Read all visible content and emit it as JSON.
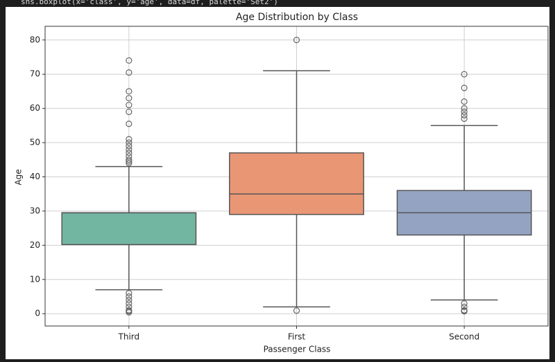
{
  "code": "sns.boxplot(x='class', y='age', data=df, palette='Set2')",
  "chart_data": {
    "type": "box",
    "title": "Age Distribution by  Class",
    "x_label": "Passenger Class",
    "y_label": "Age",
    "categories": [
      "Third",
      "First",
      "Second"
    ],
    "boxes": [
      {
        "low": 7,
        "q1": 20.2,
        "median": 29.5,
        "q3": 29.5,
        "high": 43,
        "color": "#72b6a1",
        "outliers": [
          74,
          70.5,
          65,
          63,
          61,
          59,
          55.5,
          51,
          50,
          49,
          48,
          47,
          46,
          45,
          44.5,
          44,
          6,
          5,
          4,
          3,
          2,
          1,
          0.75,
          0.4
        ]
      },
      {
        "low": 2,
        "q1": 29,
        "median": 35,
        "q3": 47,
        "high": 71,
        "color": "#e99675",
        "outliers": [
          80,
          0.9
        ]
      },
      {
        "low": 4,
        "q1": 23,
        "median": 29.5,
        "q3": 36,
        "high": 55,
        "color": "#95a3c3",
        "outliers": [
          70,
          66,
          62,
          60,
          59,
          58,
          57,
          3,
          2,
          1,
          0.8,
          0.7
        ]
      }
    ],
    "ylim": [
      -3.6,
      84
    ],
    "yticks": [
      0,
      10,
      20,
      30,
      40,
      50,
      60,
      70,
      80
    ],
    "grid": true
  }
}
